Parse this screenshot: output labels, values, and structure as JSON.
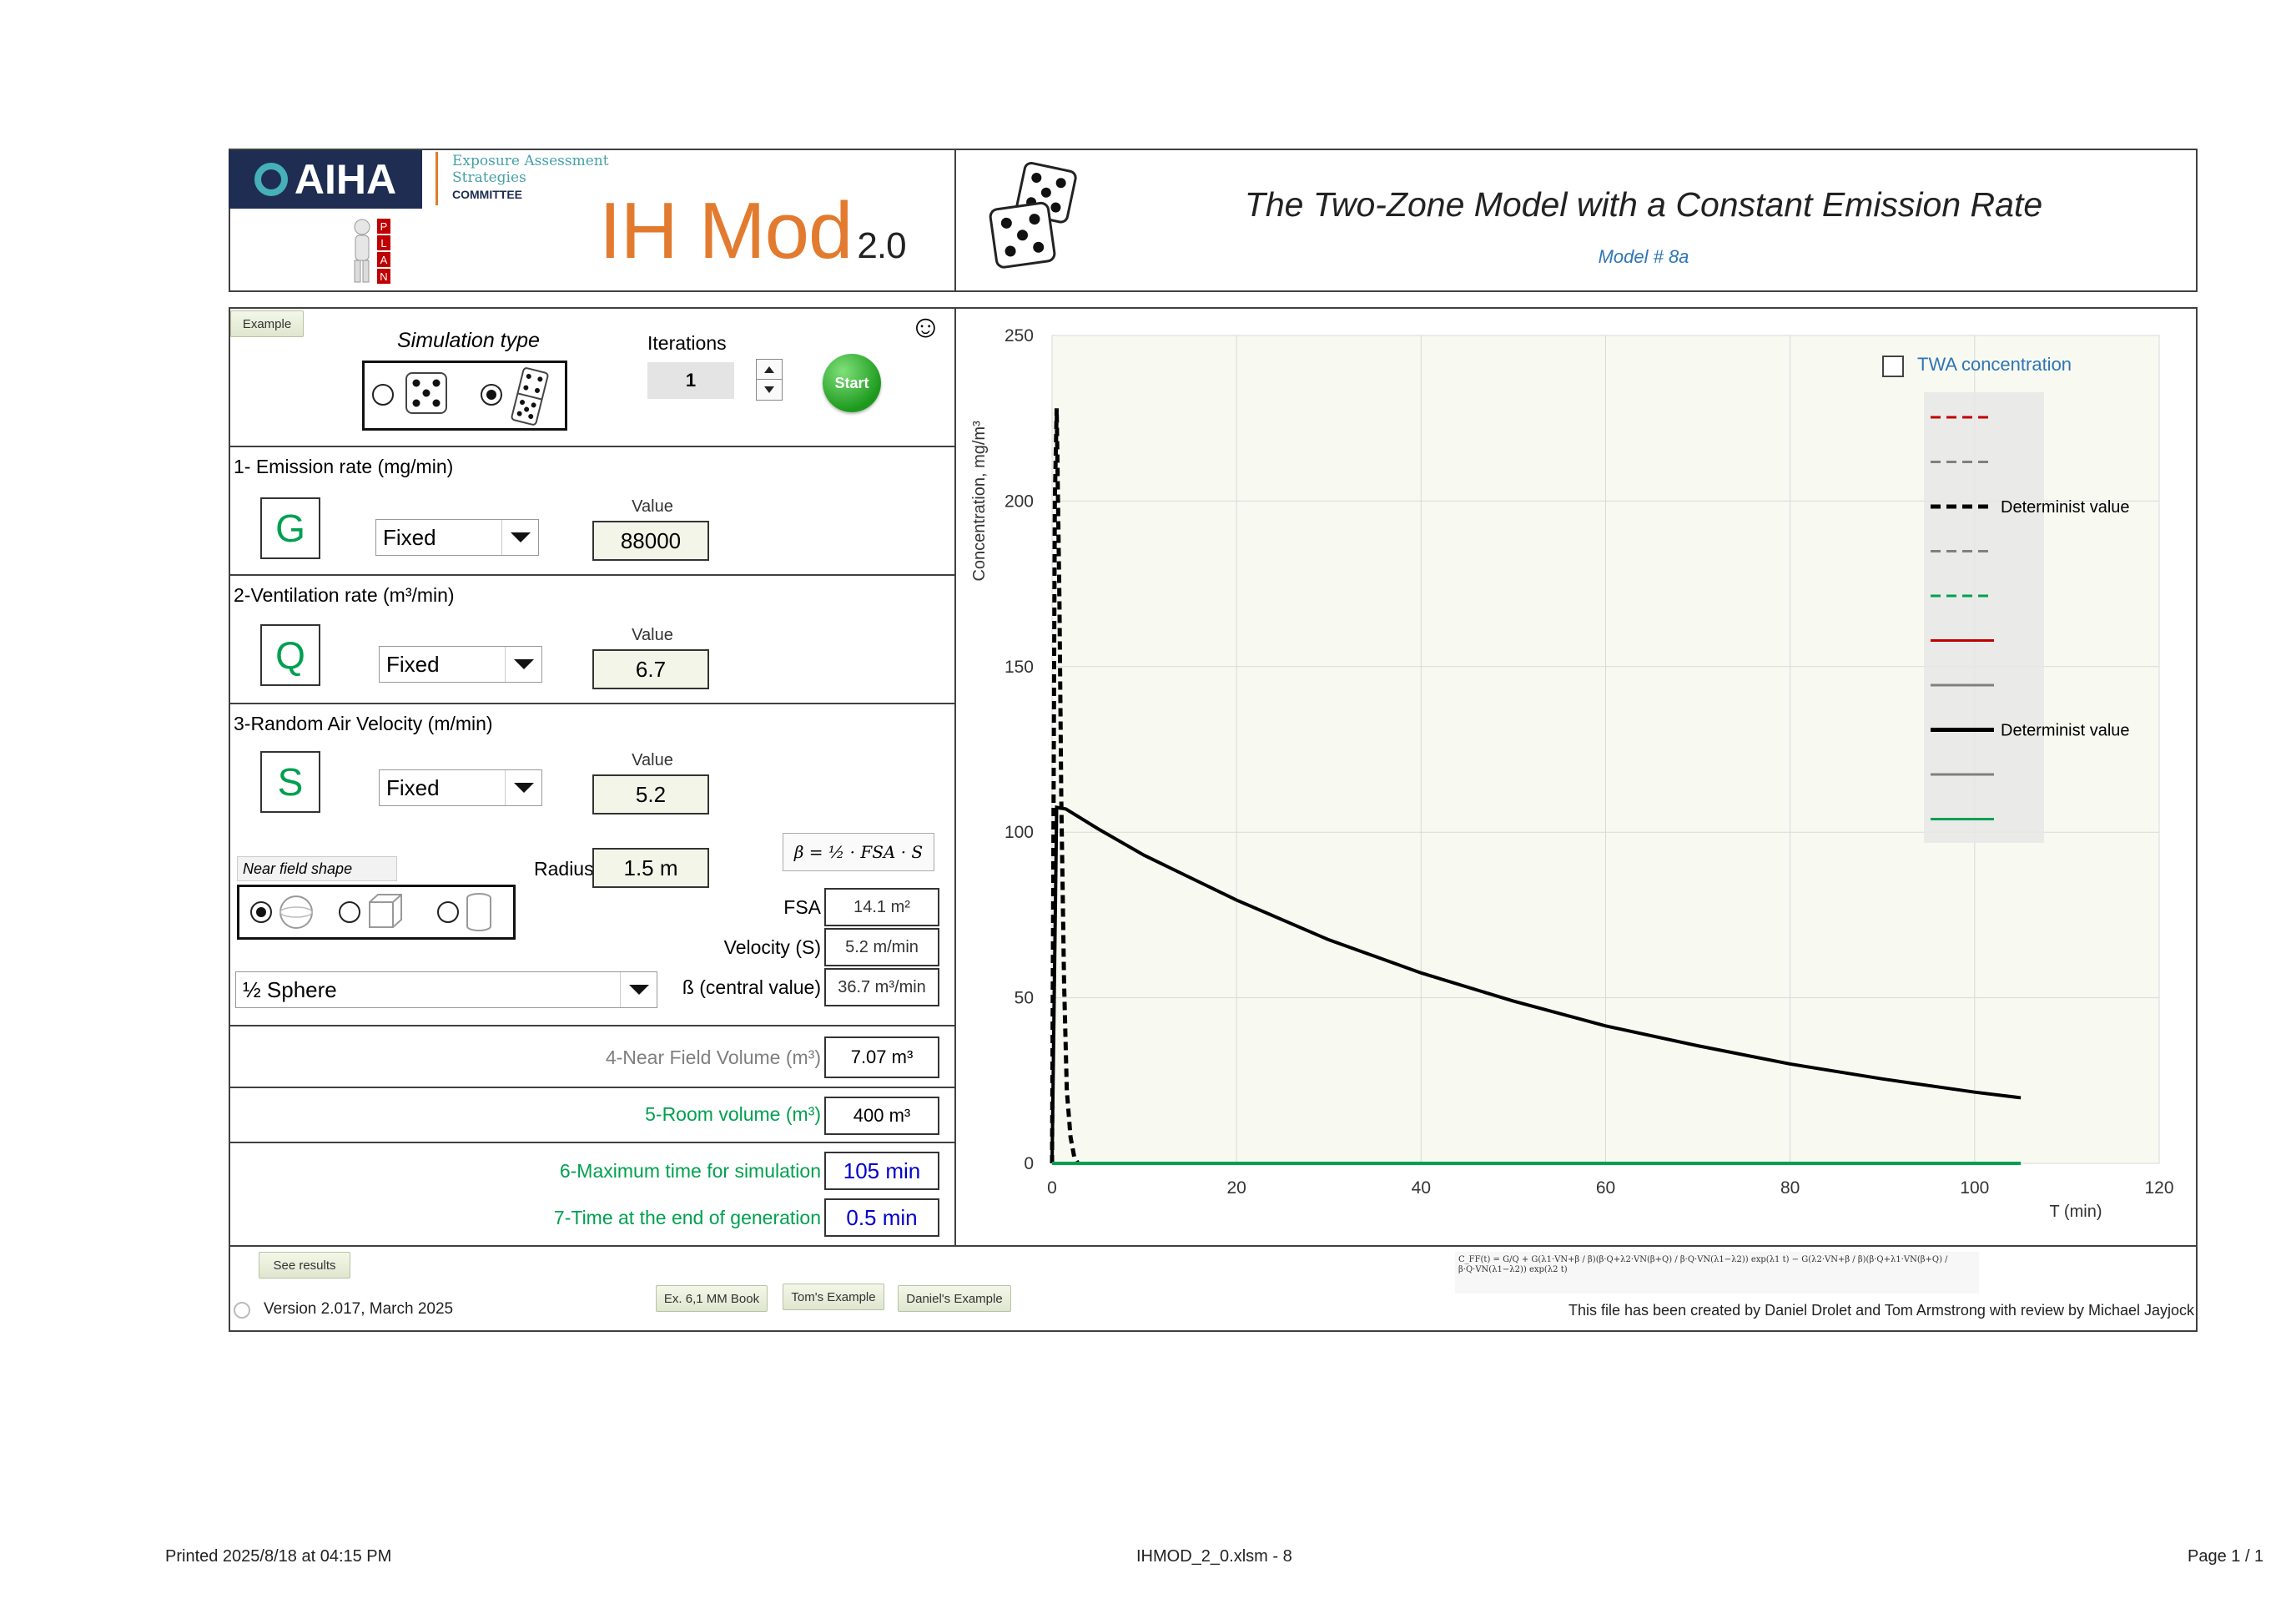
{
  "header": {
    "logo_text": "AIHA",
    "eas_line1": "Exposure Assessment",
    "eas_line2": "Strategies",
    "eas_line3": "COMMITTEE",
    "app_name": "IH Mod",
    "app_version": "2.0",
    "plan_letters": [
      "P",
      "L",
      "A",
      "N"
    ],
    "title": "The Two-Zone Model with a Constant Emission Rate",
    "model_number": "Model # 8a"
  },
  "controls": {
    "example_button": "Example",
    "simulation_type_label": "Simulation type",
    "iterations_label": "Iterations",
    "iterations_value": "1",
    "start_button": "Start",
    "smiley": "☺"
  },
  "emission": {
    "title": "1- Emission rate (mg/min)",
    "letter": "G",
    "distribution": "Fixed",
    "value_caption": "Value",
    "value": "88000"
  },
  "ventilation": {
    "title": "2-Ventilation rate (m³/min)",
    "letter": "Q",
    "distribution": "Fixed",
    "value_caption": "Value",
    "value": "6.7"
  },
  "air_velocity": {
    "title": "3-Random Air Velocity (m/min)",
    "letter": "S",
    "distribution": "Fixed",
    "value_caption": "Value",
    "value": "5.2"
  },
  "near_field": {
    "shape_label": "Near field shape",
    "radius_label": "Radius",
    "radius_value": "1.5 m",
    "shape_select": "½ Sphere",
    "beta_formula": "β = ½ · FSA · S",
    "fsa_label": "FSA",
    "fsa_value": "14.1 m²",
    "velocity_label": "Velocity (S)",
    "velocity_value": "5.2 m/min",
    "beta_label": "ß (central value)",
    "beta_value": "36.7 m³/min"
  },
  "volumes": {
    "nf_volume_label": "4-Near Field Volume (m³)",
    "nf_volume_value": "7.07 m³",
    "room_volume_label": "5-Room volume (m³)",
    "room_volume_value": "400 m³",
    "max_time_label": "6-Maximum time for simulation",
    "max_time_value": "105 min",
    "gen_time_label": "7-Time at the end of generation",
    "gen_time_value": "0.5 min"
  },
  "footer": {
    "see_results": "See results",
    "version": "Version 2.017, March 2025",
    "ex_book": "Ex. 6,1 MM Book",
    "toms_example": "Tom's Example",
    "daniels_example": "Daniel's Example",
    "credits": "This file has been created by Daniel Drolet and Tom Armstrong with review by Michael Jayjock",
    "formula": "C_FF(t) = G/Q + G(λ1·VN+β / β)(β·Q+λ2·VN(β+Q) / β·Q·VN(λ1−λ2)) exp(λ1 t) − G(λ2·VN+β / β)(β·Q+λ1·VN(β+Q) / β·Q·VN(λ1−λ2)) exp(λ2 t)"
  },
  "page_footer": {
    "printed": "Printed 2025/8/18 at 04:15 PM",
    "file": "IHMOD_2_0.xlsm - 8",
    "page": "Page 1 / 1"
  },
  "colors": {
    "orange": "#e27b2f",
    "green": "#00a050",
    "blue": "#2e75b6",
    "navy": "#1f2d52"
  },
  "chart_data": {
    "type": "line",
    "ylabel": "Concentration, mg/m³",
    "xlabel": "T (min)",
    "xlim": [
      0,
      120
    ],
    "ylim": [
      0,
      250
    ],
    "xticks": [
      0,
      20,
      40,
      60,
      80,
      100,
      120
    ],
    "yticks": [
      0,
      50,
      100,
      150,
      200,
      250
    ],
    "grid": true,
    "twa_checkbox_label": "TWA concentration",
    "twa_checked": false,
    "legend_position": "top-right",
    "legend": [
      {
        "label": "",
        "color": "#c00000",
        "dash": true
      },
      {
        "label": "",
        "color": "#808080",
        "dash": true
      },
      {
        "label": "Determinist value",
        "color": "#000000",
        "dash": true
      },
      {
        "label": "",
        "color": "#808080",
        "dash": true
      },
      {
        "label": "",
        "color": "#00a050",
        "dash": true
      },
      {
        "label": "",
        "color": "#c00000",
        "dash": false
      },
      {
        "label": "",
        "color": "#808080",
        "dash": false
      },
      {
        "label": "Determinist value",
        "color": "#000000",
        "dash": false
      },
      {
        "label": "",
        "color": "#808080",
        "dash": false
      },
      {
        "label": "",
        "color": "#00a050",
        "dash": false
      }
    ],
    "series": [
      {
        "name": "Determinist value",
        "style": "dashed",
        "color": "#000000",
        "x": [
          0,
          0.3,
          0.5,
          0.8,
          1.0,
          1.3,
          1.6,
          2.0,
          2.4,
          2.8
        ],
        "y": [
          0,
          200,
          228,
          170,
          110,
          55,
          22,
          8,
          2,
          0
        ]
      },
      {
        "name": "Determinist value",
        "style": "solid",
        "color": "#000000",
        "x": [
          0,
          0.5,
          1.5,
          5,
          10,
          20,
          30,
          40,
          50,
          60,
          70,
          80,
          90,
          100,
          105
        ],
        "y": [
          0,
          107.5,
          107,
          101,
          93,
          79.5,
          67.5,
          57.5,
          49,
          41.5,
          35.5,
          30,
          25.5,
          21.5,
          19.8
        ]
      },
      {
        "name": "",
        "style": "solid",
        "color": "#00a050",
        "x": [
          0,
          105
        ],
        "y": [
          0,
          0
        ]
      }
    ]
  }
}
